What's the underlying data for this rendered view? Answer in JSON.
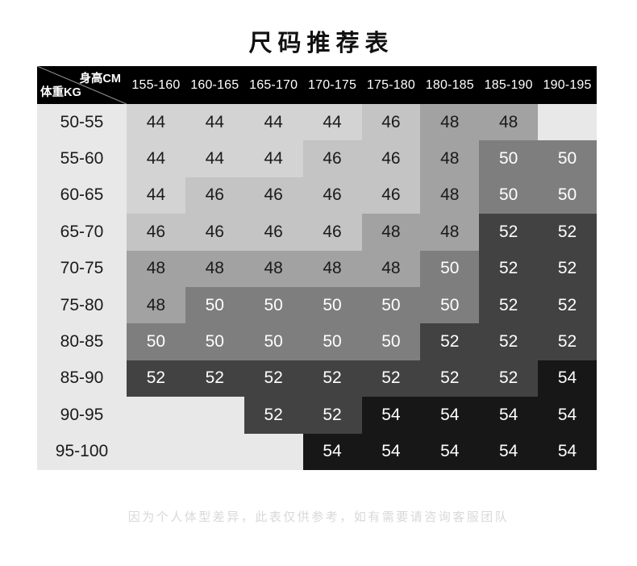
{
  "title": "尺码推荐表",
  "table": {
    "corner": {
      "top_right": "身高CM",
      "bottom_left": "体重KG"
    },
    "columns": [
      "155-160",
      "160-165",
      "165-170",
      "170-175",
      "175-180",
      "180-185",
      "185-190",
      "190-195"
    ],
    "rows": [
      {
        "label": "50-55",
        "values": [
          "44",
          "44",
          "44",
          "44",
          "46",
          "48",
          "48",
          ""
        ]
      },
      {
        "label": "55-60",
        "values": [
          "44",
          "44",
          "44",
          "46",
          "46",
          "48",
          "50",
          "50"
        ]
      },
      {
        "label": "60-65",
        "values": [
          "44",
          "46",
          "46",
          "46",
          "46",
          "48",
          "50",
          "50"
        ]
      },
      {
        "label": "65-70",
        "values": [
          "46",
          "46",
          "46",
          "46",
          "48",
          "48",
          "52",
          "52"
        ]
      },
      {
        "label": "70-75",
        "values": [
          "48",
          "48",
          "48",
          "48",
          "48",
          "50",
          "52",
          "52"
        ]
      },
      {
        "label": "75-80",
        "values": [
          "48",
          "50",
          "50",
          "50",
          "50",
          "50",
          "52",
          "52"
        ]
      },
      {
        "label": "80-85",
        "values": [
          "50",
          "50",
          "50",
          "50",
          "50",
          "52",
          "52",
          "52"
        ]
      },
      {
        "label": "85-90",
        "values": [
          "52",
          "52",
          "52",
          "52",
          "52",
          "52",
          "52",
          "54"
        ]
      },
      {
        "label": "90-95",
        "values": [
          "",
          "",
          "52",
          "52",
          "54",
          "54",
          "54",
          "54"
        ]
      },
      {
        "label": "95-100",
        "values": [
          "",
          "",
          "",
          "54",
          "54",
          "54",
          "54",
          "54"
        ]
      }
    ]
  },
  "footer": "因为个人体型差异，此表仅供参考，如有需要请咨询客服团队",
  "colors": {
    "header_bg": "#000000",
    "header_text": "#ffffff",
    "label_bg": "#e8e8e8",
    "label_text": "#1a1a1a",
    "empty_cell_bg": "#e8e8e8",
    "diagonal_line": "#9a9a9a",
    "title_text": "#111111",
    "footer_text": "#d8d8d8",
    "size_cell_styles": {
      "44": {
        "bg": "#d3d3d3",
        "text": "#1a1a1a"
      },
      "46": {
        "bg": "#c4c4c4",
        "text": "#1a1a1a"
      },
      "48": {
        "bg": "#a2a2a2",
        "text": "#1a1a1a"
      },
      "50": {
        "bg": "#7e7e7e",
        "text": "#ffffff"
      },
      "52": {
        "bg": "#424242",
        "text": "#ffffff"
      },
      "54": {
        "bg": "#171717",
        "text": "#ffffff"
      }
    }
  },
  "chart_data": {
    "type": "heatmap",
    "title": "尺码推荐表",
    "xlabel": "身高CM",
    "ylabel": "体重KG",
    "x_categories": [
      "155-160",
      "160-165",
      "165-170",
      "170-175",
      "175-180",
      "180-185",
      "185-190",
      "190-195"
    ],
    "y_categories": [
      "50-55",
      "55-60",
      "60-65",
      "65-70",
      "70-75",
      "75-80",
      "80-85",
      "85-90",
      "90-95",
      "95-100"
    ],
    "values": [
      [
        44,
        44,
        44,
        44,
        46,
        48,
        48,
        null
      ],
      [
        44,
        44,
        44,
        46,
        46,
        48,
        50,
        50
      ],
      [
        44,
        46,
        46,
        46,
        46,
        48,
        50,
        50
      ],
      [
        46,
        46,
        46,
        46,
        48,
        48,
        52,
        52
      ],
      [
        48,
        48,
        48,
        48,
        48,
        50,
        52,
        52
      ],
      [
        48,
        50,
        50,
        50,
        50,
        50,
        52,
        52
      ],
      [
        50,
        50,
        50,
        50,
        50,
        52,
        52,
        52
      ],
      [
        52,
        52,
        52,
        52,
        52,
        52,
        52,
        54
      ],
      [
        null,
        null,
        52,
        52,
        54,
        54,
        54,
        54
      ],
      [
        null,
        null,
        null,
        54,
        54,
        54,
        54,
        54
      ]
    ],
    "value_shading": "darker cell = larger size, from #d3d3d3 (44) to #171717 (54)",
    "legend": "none",
    "note": "因为个人体型差异，此表仅供参考，如有需要请咨询客服团队"
  }
}
